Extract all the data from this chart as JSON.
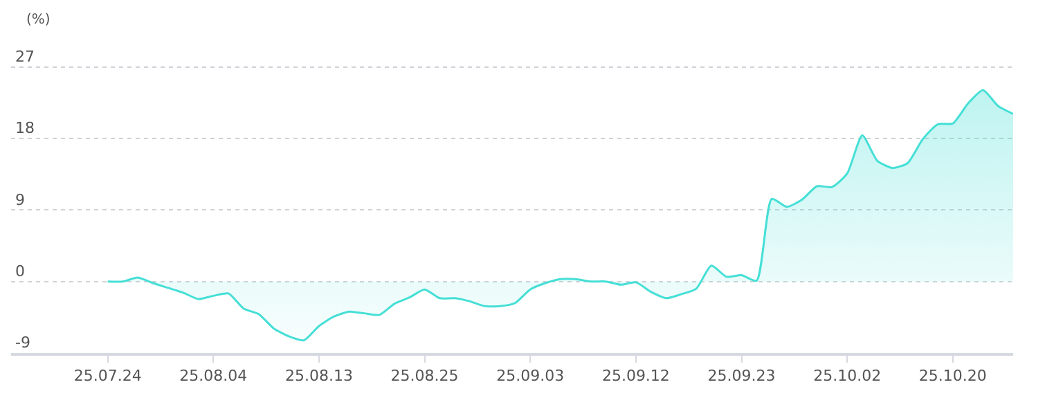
{
  "chart_data": {
    "type": "area",
    "ylabel": "(%)",
    "categories": [
      "25.07.24",
      null,
      null,
      null,
      null,
      null,
      null,
      "25.08.04",
      null,
      null,
      null,
      null,
      null,
      null,
      "25.08.13",
      null,
      null,
      null,
      null,
      null,
      null,
      "25.08.25",
      null,
      null,
      null,
      null,
      null,
      null,
      "25.09.03",
      null,
      null,
      null,
      null,
      null,
      null,
      "25.09.12",
      null,
      null,
      null,
      null,
      null,
      null,
      "25.09.23",
      null,
      null,
      null,
      null,
      null,
      null,
      "25.10.02",
      null,
      null,
      null,
      null,
      null,
      null,
      "25.10.20",
      null,
      null,
      null,
      null
    ],
    "series": [
      {
        "color": "#45dfd6",
        "values": [
          0,
          0,
          0.5,
          -0.2,
          -0.8,
          -1.4,
          -2.2,
          -1.8,
          -1.5,
          -3.4,
          -4.1,
          -5.9,
          -6.9,
          -7.4,
          -5.6,
          -4.4,
          -3.8,
          -4.0,
          -4.2,
          -2.8,
          -2.0,
          -1.0,
          -2.1,
          -2.1,
          -2.5,
          -3.1,
          -3.1,
          -2.7,
          -1.0,
          -0.2,
          0.3,
          0.3,
          0,
          0,
          -0.4,
          -0.1,
          -1.3,
          -2.1,
          -1.6,
          -0.9,
          2.0,
          0.6,
          0.8,
          0.1,
          10.4,
          9.4,
          10.3,
          12.0,
          11.9,
          13.6,
          18.4,
          15.2,
          14.3,
          14.9,
          17.9,
          19.8,
          19.9,
          22.4,
          24.1,
          22.1,
          21.1
        ]
      }
    ],
    "ylim": [
      -9,
      27
    ],
    "yticks": [
      -9,
      0,
      9,
      18,
      27
    ],
    "grid": "y"
  }
}
